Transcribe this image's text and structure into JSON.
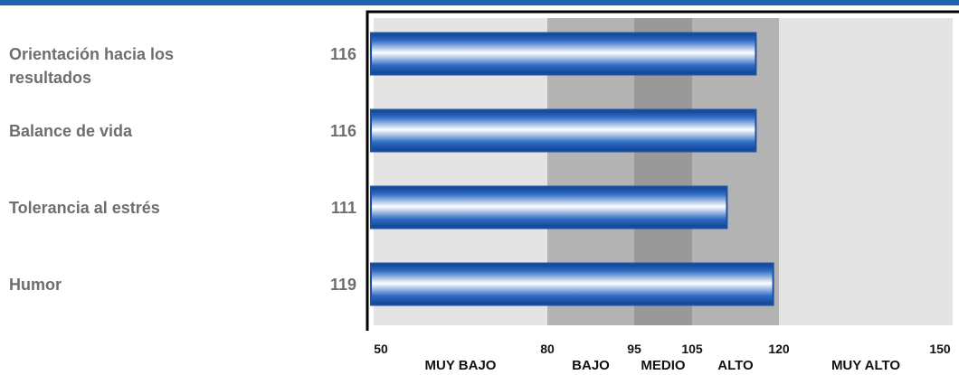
{
  "chart_data": {
    "type": "bar",
    "orientation": "horizontal",
    "categories": [
      "Orientación hacia los resultados",
      "Balance de vida",
      "Tolerancia al estrés",
      "Humor"
    ],
    "values": [
      116,
      116,
      111,
      119
    ],
    "value_labels": [
      "116",
      "116",
      "111",
      "119"
    ],
    "xlim": [
      50,
      150
    ],
    "ticks": [
      50,
      80,
      95,
      105,
      120,
      150
    ],
    "tick_labels": [
      "50",
      "80",
      "95",
      "105",
      "120",
      "150"
    ],
    "zones": [
      {
        "label": "MUY BAJO",
        "from": 50,
        "to": 80,
        "color": "#e4e4e4"
      },
      {
        "label": "BAJO",
        "from": 80,
        "to": 95,
        "color": "#b3b3b3"
      },
      {
        "label": "MEDIO",
        "from": 95,
        "to": 105,
        "color": "#999999"
      },
      {
        "label": "ALTO",
        "from": 105,
        "to": 120,
        "color": "#b3b3b3"
      },
      {
        "label": "MUY ALTO",
        "from": 120,
        "to": 150,
        "color": "#e4e4e4"
      }
    ],
    "bar_color": "#1a52a8",
    "accent_color": "#1f62ad"
  }
}
